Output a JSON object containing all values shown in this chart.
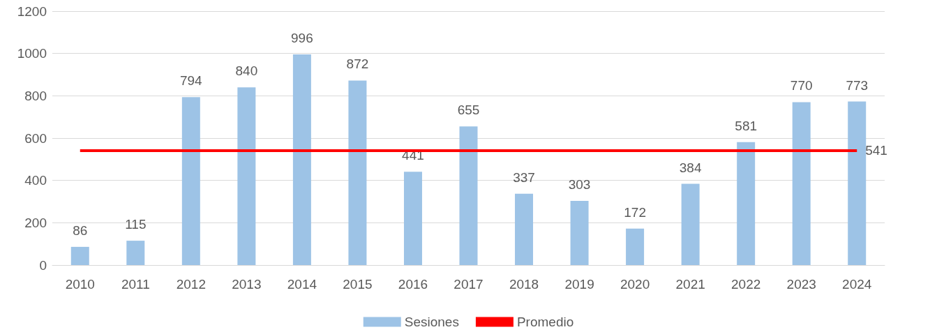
{
  "chart_data": {
    "type": "bar",
    "categories": [
      "2010",
      "2011",
      "2012",
      "2013",
      "2014",
      "2015",
      "2016",
      "2017",
      "2018",
      "2019",
      "2020",
      "2021",
      "2022",
      "2023",
      "2024"
    ],
    "series": [
      {
        "name": "Sesiones",
        "color": "#9dc3e6",
        "values": [
          86,
          115,
          794,
          840,
          996,
          872,
          441,
          655,
          337,
          303,
          172,
          384,
          581,
          770,
          773
        ],
        "data_labels": true
      },
      {
        "name": "Promedio",
        "type": "line",
        "color": "#ff0000",
        "values": [
          541,
          541,
          541,
          541,
          541,
          541,
          541,
          541,
          541,
          541,
          541,
          541,
          541,
          541,
          541
        ],
        "value_labels": [
          null,
          null,
          null,
          null,
          null,
          null,
          null,
          null,
          null,
          null,
          null,
          null,
          null,
          null,
          "541"
        ]
      }
    ],
    "ylim": [
      0,
      1200
    ],
    "yticks": [
      0,
      200,
      400,
      600,
      800,
      1000,
      1200
    ],
    "grid": "y",
    "legend": "bottom",
    "marker": "none"
  }
}
